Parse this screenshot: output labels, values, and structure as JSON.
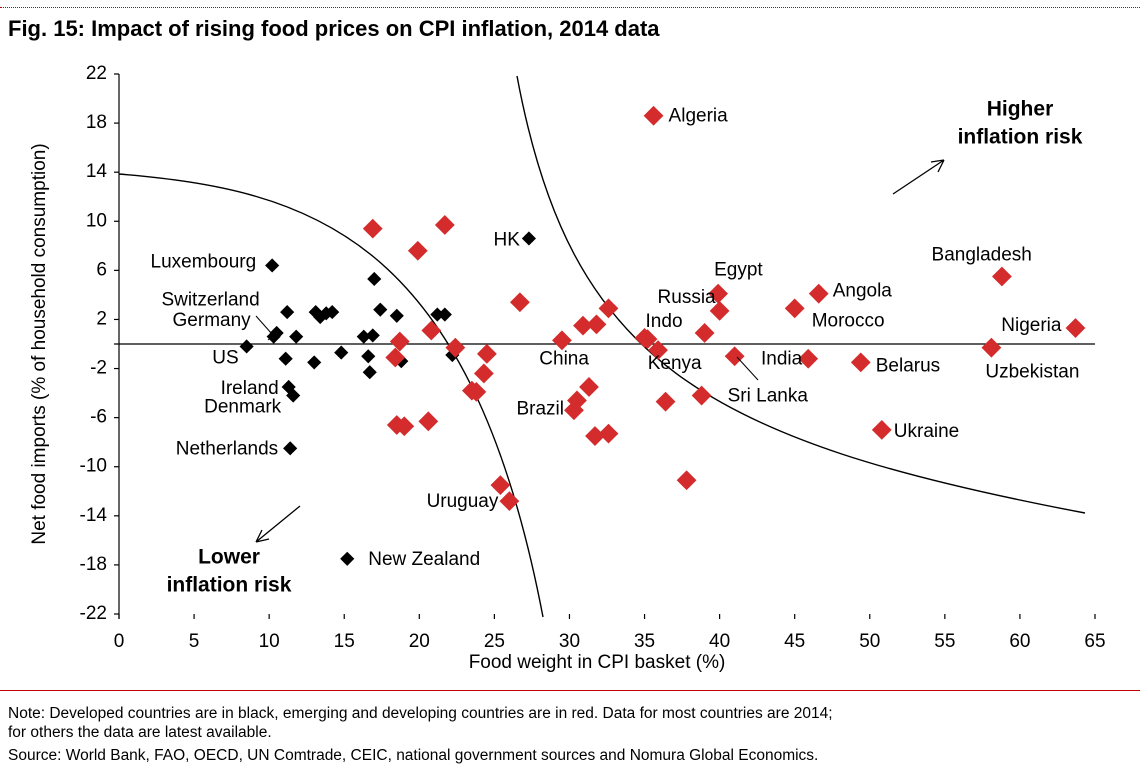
{
  "title": "Fig. 15: Impact of rising food prices on CPI inflation, 2014 data",
  "note": "Note: Developed countries are in black, emerging and developing countries are in red. Data for most countries are 2014;",
  "note2": "for others the data are latest available.",
  "source": "Source: World Bank, FAO, OECD, UN Comtrade, CEIC, national government sources and Nomura Global Economics.",
  "colors": {
    "developed": "#000000",
    "emerging": "#d42c2c",
    "rule": "#c00000"
  },
  "chart_data": {
    "type": "scatter",
    "title": "",
    "xlabel": "Food weight in CPI basket (%)",
    "ylabel": "Net food imports (% of household consumption)",
    "xlim": [
      0,
      65
    ],
    "ylim": [
      -22,
      22
    ],
    "xticks": [
      0,
      5,
      10,
      15,
      20,
      25,
      30,
      35,
      40,
      45,
      50,
      55,
      60,
      65
    ],
    "yticks": [
      22,
      18,
      14,
      10,
      6,
      2,
      -2,
      -6,
      -10,
      -14,
      -18,
      -22
    ],
    "annotations": {
      "lower_line1": "Lower",
      "lower_line2": "inflation risk",
      "higher_line1": "Higher",
      "higher_line2": "inflation risk"
    },
    "series": [
      {
        "color": "#000000",
        "points": [
          {
            "x": 10.2,
            "y": 6.4,
            "label": "Luxembourg"
          },
          {
            "x": 10.3,
            "y": 0.6,
            "label": "Switzerland"
          },
          {
            "x": 10.5,
            "y": 0.9,
            "label": "Germany"
          },
          {
            "x": 8.5,
            "y": -0.2,
            "label": "US"
          },
          {
            "x": 11.3,
            "y": -3.5,
            "label": "Ireland"
          },
          {
            "x": 11.6,
            "y": -4.2,
            "label": "Denmark"
          },
          {
            "x": 11.4,
            "y": -8.5,
            "label": "Netherlands"
          },
          {
            "x": 15.2,
            "y": -17.5,
            "label": "New Zealand"
          },
          {
            "x": 27.3,
            "y": 8.6,
            "label": "HK"
          },
          {
            "x": 11.2,
            "y": 2.6,
            "label": ""
          },
          {
            "x": 11.8,
            "y": 0.6,
            "label": ""
          },
          {
            "x": 11.1,
            "y": -1.2,
            "label": ""
          },
          {
            "x": 13.1,
            "y": 2.6,
            "label": ""
          },
          {
            "x": 13.4,
            "y": 2.2,
            "label": ""
          },
          {
            "x": 13.8,
            "y": 2.5,
            "label": ""
          },
          {
            "x": 14.2,
            "y": 2.6,
            "label": ""
          },
          {
            "x": 13.0,
            "y": -1.5,
            "label": ""
          },
          {
            "x": 14.8,
            "y": -0.7,
            "label": ""
          },
          {
            "x": 16.3,
            "y": 0.6,
            "label": ""
          },
          {
            "x": 16.9,
            "y": 0.7,
            "label": ""
          },
          {
            "x": 17.0,
            "y": 5.3,
            "label": ""
          },
          {
            "x": 17.4,
            "y": 2.8,
            "label": ""
          },
          {
            "x": 16.6,
            "y": -1.0,
            "label": ""
          },
          {
            "x": 16.7,
            "y": -2.3,
            "label": ""
          },
          {
            "x": 18.5,
            "y": 2.3,
            "label": ""
          },
          {
            "x": 18.8,
            "y": -1.4,
            "label": ""
          },
          {
            "x": 21.2,
            "y": 2.4,
            "label": ""
          },
          {
            "x": 21.7,
            "y": 2.4,
            "label": ""
          },
          {
            "x": 22.2,
            "y": -0.9,
            "label": ""
          }
        ]
      },
      {
        "color": "#d42c2c",
        "points": [
          {
            "x": 35.6,
            "y": 18.6,
            "label": "Algeria"
          },
          {
            "x": 58.8,
            "y": 5.5,
            "label": "Bangladesh"
          },
          {
            "x": 39.9,
            "y": 4.1,
            "label": "Egypt"
          },
          {
            "x": 46.6,
            "y": 4.1,
            "label": "Angola"
          },
          {
            "x": 40.0,
            "y": 2.7,
            "label": "Russia"
          },
          {
            "x": 45.0,
            "y": 2.9,
            "label": "Morocco"
          },
          {
            "x": 63.7,
            "y": 1.3,
            "label": "Nigeria"
          },
          {
            "x": 35.2,
            "y": 0.4,
            "label": "Indo"
          },
          {
            "x": 29.5,
            "y": 0.3,
            "label": "China"
          },
          {
            "x": 39.0,
            "y": 0.9,
            "label": "Kenya"
          },
          {
            "x": 45.9,
            "y": -1.2,
            "label": "India"
          },
          {
            "x": 49.4,
            "y": -1.5,
            "label": "Belarus"
          },
          {
            "x": 58.1,
            "y": -0.3,
            "label": "Uzbekistan"
          },
          {
            "x": 41.0,
            "y": -1.0,
            "label": "Sri Lanka"
          },
          {
            "x": 30.3,
            "y": -5.4,
            "label": "Brazil"
          },
          {
            "x": 50.8,
            "y": -7.0,
            "label": "Ukraine"
          },
          {
            "x": 26.0,
            "y": -12.8,
            "label": "Uruguay"
          },
          {
            "x": 16.9,
            "y": 9.4,
            "label": ""
          },
          {
            "x": 19.9,
            "y": 7.6,
            "label": ""
          },
          {
            "x": 21.7,
            "y": 9.7,
            "label": ""
          },
          {
            "x": 26.7,
            "y": 3.4,
            "label": ""
          },
          {
            "x": 20.8,
            "y": 1.1,
            "label": ""
          },
          {
            "x": 18.4,
            "y": -1.1,
            "label": ""
          },
          {
            "x": 18.7,
            "y": 0.2,
            "label": ""
          },
          {
            "x": 22.4,
            "y": -0.3,
            "label": ""
          },
          {
            "x": 24.5,
            "y": -0.8,
            "label": ""
          },
          {
            "x": 24.3,
            "y": -2.4,
            "label": ""
          },
          {
            "x": 23.5,
            "y": -3.8,
            "label": ""
          },
          {
            "x": 23.8,
            "y": -3.9,
            "label": ""
          },
          {
            "x": 18.5,
            "y": -6.6,
            "label": ""
          },
          {
            "x": 19.0,
            "y": -6.7,
            "label": ""
          },
          {
            "x": 20.6,
            "y": -6.3,
            "label": ""
          },
          {
            "x": 25.4,
            "y": -11.5,
            "label": ""
          },
          {
            "x": 30.5,
            "y": -4.6,
            "label": ""
          },
          {
            "x": 31.3,
            "y": -3.5,
            "label": ""
          },
          {
            "x": 30.9,
            "y": 1.5,
            "label": ""
          },
          {
            "x": 31.8,
            "y": 1.6,
            "label": ""
          },
          {
            "x": 32.6,
            "y": 2.9,
            "label": ""
          },
          {
            "x": 31.7,
            "y": -7.5,
            "label": ""
          },
          {
            "x": 32.6,
            "y": -7.3,
            "label": ""
          },
          {
            "x": 35.0,
            "y": 0.5,
            "label": ""
          },
          {
            "x": 35.9,
            "y": -0.5,
            "label": ""
          },
          {
            "x": 36.4,
            "y": -4.7,
            "label": ""
          },
          {
            "x": 38.8,
            "y": -4.2,
            "label": ""
          },
          {
            "x": 37.8,
            "y": -11.1,
            "label": ""
          }
        ]
      }
    ]
  }
}
